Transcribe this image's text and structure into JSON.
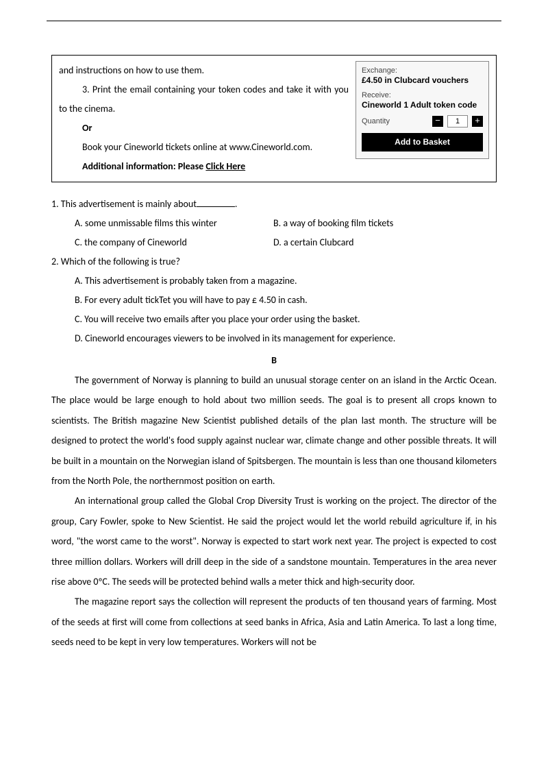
{
  "ad": {
    "line1": "and instructions on how to use them.",
    "line2": "3. Print the email containing your token codes and take it with you to the cinema.",
    "or": "Or",
    "book_line": "Book your Cineworld tickets online at www.Cineworld.com.",
    "additional_prefix": "Additional information: Please ",
    "click_here": "Click Here"
  },
  "widget": {
    "exchange_label": "Exchange:",
    "exchange_value": "£4.50 in Clubcard vouchers",
    "receive_label": "Receive:",
    "receive_value": "Cineworld 1 Adult token code",
    "quantity_label": "Quantity",
    "quantity_value": "1",
    "minus": "−",
    "plus": "+",
    "add_to_basket": "Add to Basket"
  },
  "q1": {
    "stem_pre": "1. This advertisement is mainly about",
    "stem_post": ".",
    "a": "A. some unmissable films this winter",
    "b": "B. a way of booking film tickets",
    "c": "C. the company of Cineworld",
    "d": "D. a certain Clubcard"
  },
  "q2": {
    "stem": "2. Which of the following is true?",
    "a": "A. This advertisement is probably taken from a magazine.",
    "b": "B. For every adult tickTet you will have to pay £ 4.50 in cash.",
    "c": "C. You will receive two emails after you place your order using the basket.",
    "d": "D. Cineworld encourages viewers to be involved in its management for experience."
  },
  "section_b_label": "B",
  "passage": {
    "p1": "The government of Norway is planning to build an unusual storage center on an island in the Arctic Ocean. The place would be large enough to hold about two million seeds. The goal is to present all crops known to scientists. The British magazine New Scientist published details of the plan last month. The structure will be designed to protect the world's food supply against nuclear war, climate change and other possible threats. It will be built in a mountain on the Norwegian island of Spitsbergen. The mountain is less than one thousand kilometers from the North Pole, the northernmost position on earth.",
    "p2": "An international group called the Global Crop Diversity Trust is working on the project. The director of the group, Cary Fowler, spoke to New Scientist. He said the project would let the world rebuild agriculture if, in his word, \"the worst came to the worst\". Norway is expected to start work next year. The project is expected to cost three million dollars. Workers will drill deep in the side of a sandstone mountain. Temperatures in the area never rise above 0ºC. The seeds will be protected behind walls a meter thick and high-security door.",
    "p3": "The magazine report says the collection will represent the products of ten thousand years of farming. Most of the seeds at first will come from collections at seed banks in Africa, Asia and Latin America. To last a long time, seeds need to be kept in very low temperatures. Workers will not be"
  }
}
